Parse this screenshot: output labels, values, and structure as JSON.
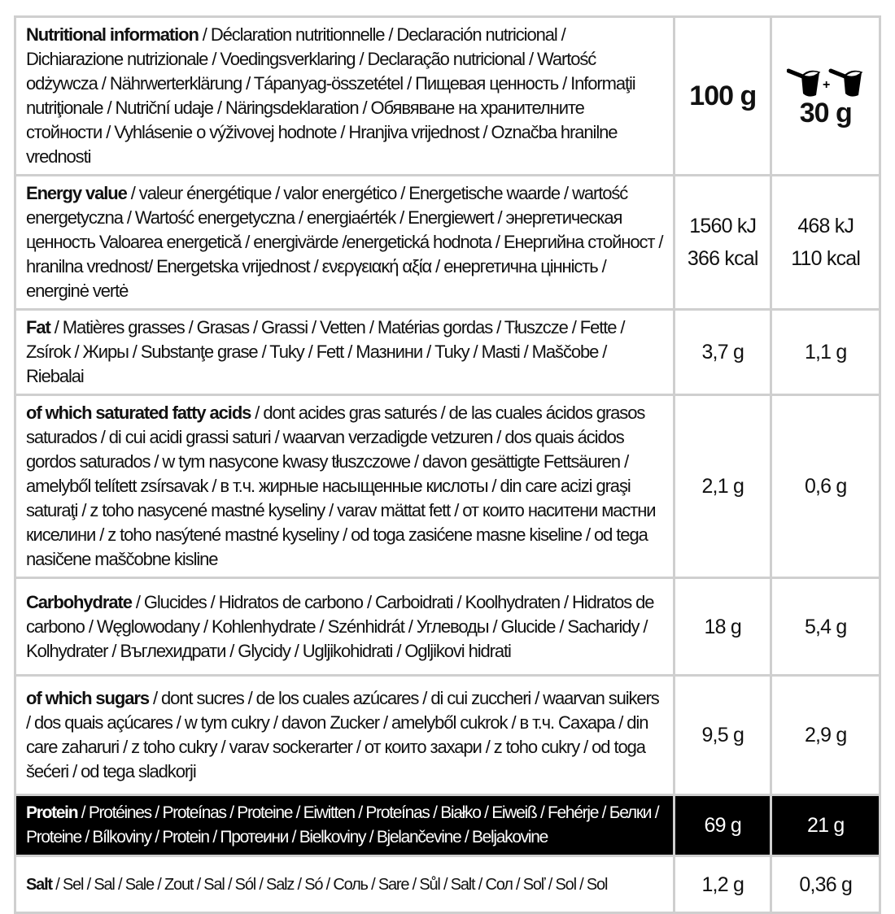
{
  "header": {
    "bold": "Nutritional information",
    "rest": " / Déclaration nutritionnelle / Declaración nutricional / Dichiarazione nutrizionale / Voedingsverklaring / Declaração nutricional / Wartość odżywcza / Nährwerterklärung / Tápanyag-összetétel / Пищевая ценность / Informaţii nutriţionale / Nutriční udaje / Näringsdeklaration / Обявяване на хранителните стойности / Vyhlásenie o výživovej hodnote / Hranjiva vrijednost / Označba hranilne vrednosti",
    "col1": "100 g",
    "col2": "30 g",
    "col2_icon": "two-scoops-icon",
    "plus": "+"
  },
  "rows": [
    {
      "bold": "Energy value",
      "rest": " / valeur énergétique / valor energético / Energetische waarde / wartość energetyczna / Wartość energetyczna / energiaérték / Energiewert / энергетическая ценность Valoarea energetică / energivärde /energetická hodnota / Енергийна стойност / hranilna vrednost/ Energetska vrijednost / ενεργειακή αξία / енергетична цінність / energinė vertė",
      "v1": "1560 kJ",
      "v1b": "366 kcal",
      "v2": "468 kJ",
      "v2b": "110 kcal"
    },
    {
      "bold": "Fat",
      "rest": " / Matières grasses / Grasas / Grassi / Vetten / Matérias gordas / Tłuszcze / Fette / Zsírok / Жиры / Substanţe grase / Tuky / Fett / Мазнини / Tuky / Masti / Maščobe / Riebalai",
      "v1": "3,7 g",
      "v2": "1,1 g"
    },
    {
      "bold": "of which saturated fatty acids",
      "rest": " / dont acides gras saturés / de las cuales ácidos grasos saturados / di cui acidi grassi saturi / waarvan verzadigde vetzuren / dos quais ácidos gordos saturados / w tym nasycone kwasy tłuszczowe / davon gesättigte Fettsäuren / amelyből telített zsírsavak / в т.ч. жирные насыщенные кислоты / din care acizi graşi saturaţi / z toho nasycené mastné kyseliny / varav mättat fett / от които наситени мастни киселини / z toho nasýtené mastné kyseliny / od toga zasićene masne kiseline / od tega nasičene maščobne kisline",
      "v1": "2,1 g",
      "v2": "0,6 g"
    },
    {
      "bold": "Carbohydrate",
      "rest": " / Glucides / Hidratos de carbono / Carboidrati / Koolhydraten / Hidratos de carbono / Węglowodany / Kohlenhydrate / Szénhidrát / Углеводы / Glucide / Sacharidy / Kolhydrater / Въглехидрати / Glycidy / Ugljikohidrati / Ogljikovi hidrati",
      "v1": "18 g",
      "v2": "5,4 g"
    },
    {
      "bold": "of which sugars",
      "rest": " / dont sucres / de los cuales azúcares / di cui zuccheri / waarvan suikers / dos quais açúcares / w tym cukry / davon Zucker / amelyből cukrok / в т.ч. Сахара / din care zaharuri / z toho cukry / varav sockerarter / от които захари / z toho cukry / od toga šećeri / od tega sladkorji",
      "v1": "9,5 g",
      "v2": "2,9 g"
    },
    {
      "bold": "Protein",
      "rest": " / Protéines / Proteínas / Proteine / Eiwitten / Proteínas / Białko / Eiweiß / Fehérje / Белки / Proteine / Bílkoviny / Protein / Протеини / Bielkoviny / Bjelančevine / Beljakovine",
      "v1": "69 g",
      "v2": "21 g"
    },
    {
      "bold": "Salt",
      "rest": " / Sel / Sal / Sale / Zout / Sal / Sól / Salz / Só / Соль / Sare / Sůl / Salt / Сол / Soľ / Sol / Sol",
      "v1": "1,2 g",
      "v2": "0,36 g"
    }
  ]
}
